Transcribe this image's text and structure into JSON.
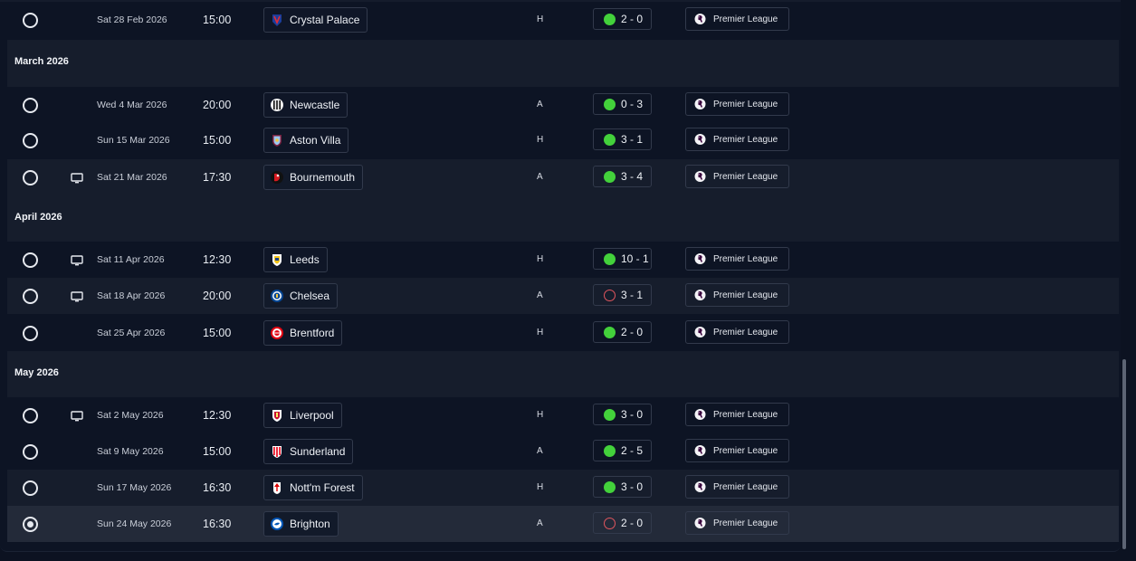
{
  "colors": {
    "win": "#43d13b",
    "loss": "#e0565e",
    "row_alt": "#161d2c",
    "row_base": "#0d1424",
    "selected": "#232a39"
  },
  "months": [
    {
      "label": "March 2026"
    },
    {
      "label": "April 2026"
    },
    {
      "label": "May 2026"
    }
  ],
  "fixtures": [
    {
      "date": "Sat 28 Feb 2026",
      "time": "15:00",
      "opponent": "Crystal Palace",
      "crest": "crystal-palace-crest-icon",
      "venue": "H",
      "score": "2 - 0",
      "result": "win",
      "competition": "Premier League",
      "tv": false,
      "selected": false
    },
    {
      "date": "Wed 4 Mar 2026",
      "time": "20:00",
      "opponent": "Newcastle",
      "crest": "newcastle-crest-icon",
      "venue": "A",
      "score": "0 - 3",
      "result": "win",
      "competition": "Premier League",
      "tv": false,
      "selected": false
    },
    {
      "date": "Sun 15 Mar 2026",
      "time": "15:00",
      "opponent": "Aston Villa",
      "crest": "aston-villa-crest-icon",
      "venue": "H",
      "score": "3 - 1",
      "result": "win",
      "competition": "Premier League",
      "tv": false,
      "selected": false
    },
    {
      "date": "Sat 21 Mar 2026",
      "time": "17:30",
      "opponent": "Bournemouth",
      "crest": "bournemouth-crest-icon",
      "venue": "A",
      "score": "3 - 4",
      "result": "win",
      "competition": "Premier League",
      "tv": true,
      "selected": false
    },
    {
      "date": "Sat 11 Apr 2026",
      "time": "12:30",
      "opponent": "Leeds",
      "crest": "leeds-crest-icon",
      "venue": "H",
      "score": "10 - 1",
      "result": "win",
      "competition": "Premier League",
      "tv": true,
      "selected": false
    },
    {
      "date": "Sat 18 Apr 2026",
      "time": "20:00",
      "opponent": "Chelsea",
      "crest": "chelsea-crest-icon",
      "venue": "A",
      "score": "3 - 1",
      "result": "loss",
      "competition": "Premier League",
      "tv": true,
      "selected": false
    },
    {
      "date": "Sat 25 Apr 2026",
      "time": "15:00",
      "opponent": "Brentford",
      "crest": "brentford-crest-icon",
      "venue": "H",
      "score": "2 - 0",
      "result": "win",
      "competition": "Premier League",
      "tv": false,
      "selected": false
    },
    {
      "date": "Sat 2 May 2026",
      "time": "12:30",
      "opponent": "Liverpool",
      "crest": "liverpool-crest-icon",
      "venue": "H",
      "score": "3 - 0",
      "result": "win",
      "competition": "Premier League",
      "tv": true,
      "selected": false
    },
    {
      "date": "Sat 9 May 2026",
      "time": "15:00",
      "opponent": "Sunderland",
      "crest": "sunderland-crest-icon",
      "venue": "A",
      "score": "2 - 5",
      "result": "win",
      "competition": "Premier League",
      "tv": false,
      "selected": false
    },
    {
      "date": "Sun 17 May 2026",
      "time": "16:30",
      "opponent": "Nott'm Forest",
      "crest": "nottm-forest-crest-icon",
      "venue": "H",
      "score": "3 - 0",
      "result": "win",
      "competition": "Premier League",
      "tv": false,
      "selected": false
    },
    {
      "date": "Sun 24 May 2026",
      "time": "16:30",
      "opponent": "Brighton",
      "crest": "brighton-crest-icon",
      "venue": "A",
      "score": "2 - 0",
      "result": "loss",
      "competition": "Premier League",
      "tv": false,
      "selected": true
    }
  ]
}
